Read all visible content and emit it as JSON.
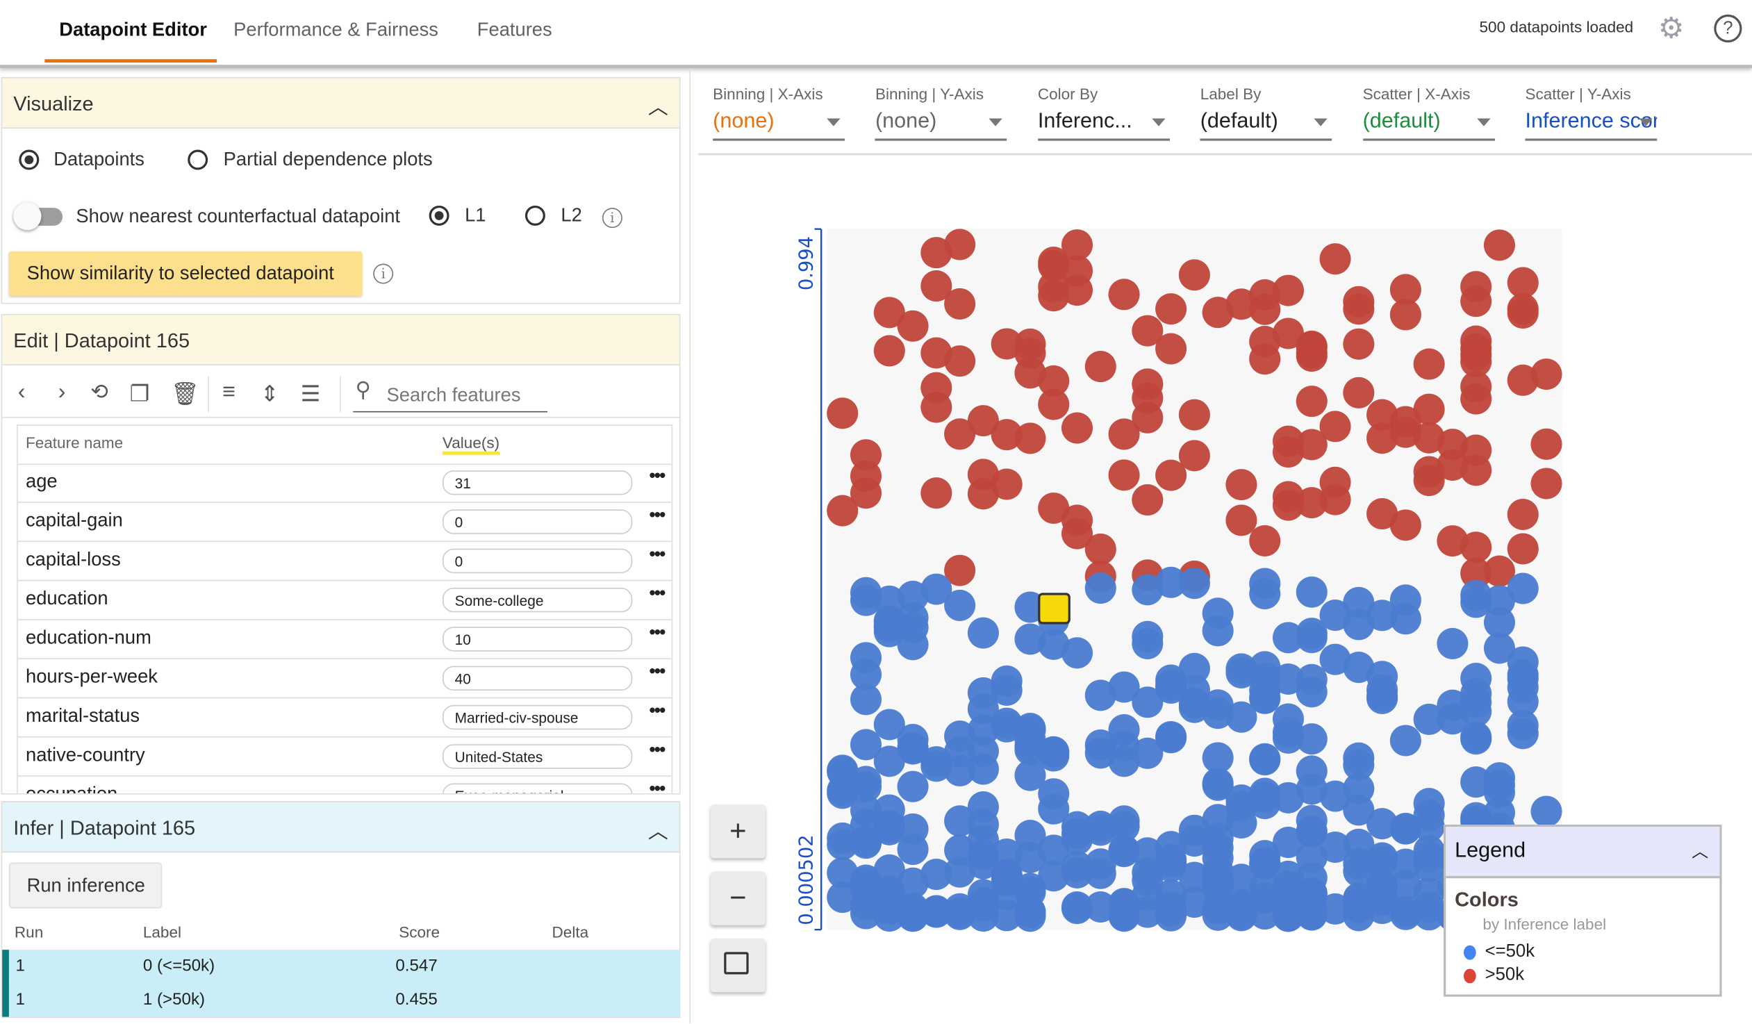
{
  "header": {
    "tabs": [
      {
        "label": "Datapoint Editor",
        "active": true
      },
      {
        "label": "Performance & Fairness",
        "active": false
      },
      {
        "label": "Features",
        "active": false
      }
    ],
    "status": "500 datapoints loaded",
    "accent_color": "#e8710a"
  },
  "visualize": {
    "title": "Visualize",
    "mode_options": [
      {
        "label": "Datapoints",
        "selected": true
      },
      {
        "label": "Partial dependence plots",
        "selected": false
      }
    ],
    "counterfactual_toggle_label": "Show nearest counterfactual datapoint",
    "counterfactual_toggle_on": false,
    "distance_options": [
      {
        "label": "L1",
        "selected": true
      },
      {
        "label": "L2",
        "selected": false
      }
    ],
    "similarity_button": "Show similarity to selected datapoint"
  },
  "edit": {
    "title": "Edit | Datapoint 165",
    "search_placeholder": "Search features",
    "col_feature": "Feature name",
    "col_value": "Value(s)",
    "features": [
      {
        "name": "age",
        "value": "31"
      },
      {
        "name": "capital-gain",
        "value": "0"
      },
      {
        "name": "capital-loss",
        "value": "0"
      },
      {
        "name": "education",
        "value": "Some-college"
      },
      {
        "name": "education-num",
        "value": "10"
      },
      {
        "name": "hours-per-week",
        "value": "40"
      },
      {
        "name": "marital-status",
        "value": "Married-civ-spouse"
      },
      {
        "name": "native-country",
        "value": "United-States"
      },
      {
        "name": "occupation",
        "value": "Exec-managerial"
      }
    ]
  },
  "infer": {
    "title": "Infer | Datapoint 165",
    "run_button": "Run inference",
    "columns": [
      "Run",
      "Label",
      "Score",
      "Delta"
    ],
    "rows": [
      {
        "run": "1",
        "label": "0 (<=50k)",
        "score": "0.547",
        "delta": ""
      },
      {
        "run": "1",
        "label": "1 (>50k)",
        "score": "0.455",
        "delta": ""
      }
    ]
  },
  "controls": [
    {
      "label": "Binning | X-Axis",
      "value": "(none)",
      "color": "#e8710a"
    },
    {
      "label": "Binning | Y-Axis",
      "value": "(none)",
      "color": "#666666"
    },
    {
      "label": "Color By",
      "value": "Inferenc...",
      "color": "#212121"
    },
    {
      "label": "Label By",
      "value": "(default)",
      "color": "#212121"
    },
    {
      "label": "Scatter | X-Axis",
      "value": "(default)",
      "color": "#1e8e3e"
    },
    {
      "label": "Scatter | Y-Axis",
      "value": "Inference score",
      "color": "#1a4fc4"
    }
  ],
  "legend": {
    "title": "Legend",
    "section": "Colors",
    "subtitle": "by Inference label",
    "items": [
      {
        "label": "<=50k",
        "color": "#4285f4"
      },
      {
        "label": ">50k",
        "color": "#db4437"
      }
    ]
  },
  "chart_data": {
    "type": "scatter",
    "xlabel": "",
    "ylabel": "",
    "y_tick_labels": [
      "0.994",
      "0.000502"
    ],
    "ylim": [
      0.000502,
      0.994
    ],
    "total_points": 500,
    "series": [
      {
        "name": "<=50k",
        "color": "#4a7bd0",
        "score_range": [
          0.000502,
          0.5
        ]
      },
      {
        "name": ">50k",
        "color": "#c0453a",
        "score_range": [
          0.5,
          0.994
        ]
      }
    ],
    "selected_point": {
      "id": 165,
      "score": 0.455,
      "highlight_color": "#f5d90a"
    }
  }
}
